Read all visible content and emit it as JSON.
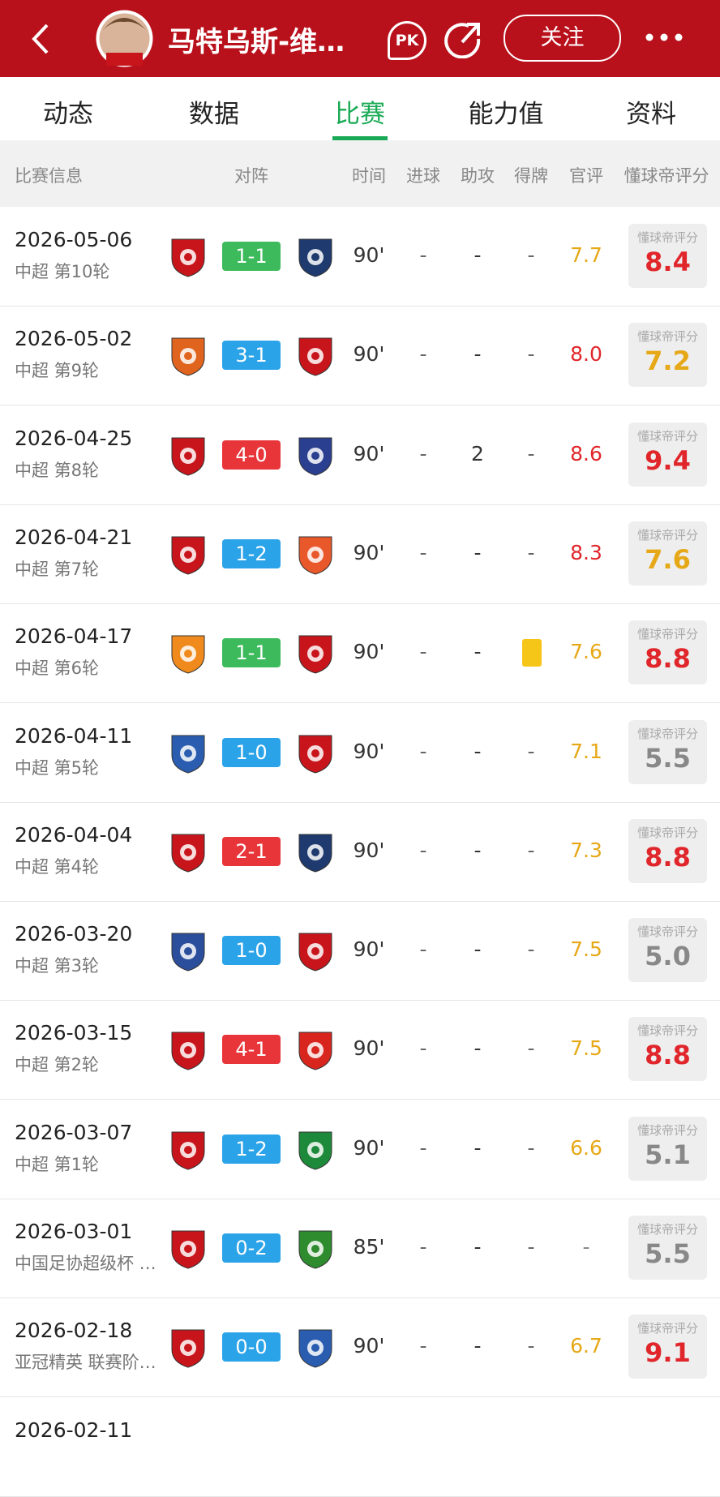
{
  "header": {
    "title": "马特乌斯-维…",
    "pk": "PK",
    "follow": "关注"
  },
  "tabs": {
    "items": [
      "动态",
      "数据",
      "比赛",
      "能力值",
      "资料"
    ],
    "active": 2,
    "active_color": "#1aaa55"
  },
  "table": {
    "columns": [
      "比赛信息",
      "对阵",
      "时间",
      "进球",
      "助攻",
      "得牌",
      "官评",
      "懂球帝评分"
    ],
    "dqd_label": "懂球帝评分",
    "rows": [
      {
        "date": "2026-05-06",
        "comp": "中超 第10轮",
        "score": "1-1",
        "score_color": "#3dbb5c",
        "left_logo": "#c8151b",
        "right_logo": "#1f3a6e",
        "time": "90'",
        "goals": "-",
        "assists": "-",
        "cards": "-",
        "rating": "7.7",
        "rating_color": "#e6a817",
        "dqd": "8.4",
        "dqd_color": "#e0262b"
      },
      {
        "date": "2026-05-02",
        "comp": "中超 第9轮",
        "score": "3-1",
        "score_color": "#2ba3e8",
        "left_logo": "#e0641e",
        "right_logo": "#c8151b",
        "time": "90'",
        "goals": "-",
        "assists": "-",
        "cards": "-",
        "rating": "8.0",
        "rating_color": "#e0262b",
        "dqd": "7.2",
        "dqd_color": "#e6a817"
      },
      {
        "date": "2026-04-25",
        "comp": "中超 第8轮",
        "score": "4-0",
        "score_color": "#e8353a",
        "left_logo": "#c8151b",
        "right_logo": "#2a3f8f",
        "time": "90'",
        "goals": "-",
        "assists": "2",
        "cards": "-",
        "rating": "8.6",
        "rating_color": "#e0262b",
        "dqd": "9.4",
        "dqd_color": "#e0262b"
      },
      {
        "date": "2026-04-21",
        "comp": "中超 第7轮",
        "score": "1-2",
        "score_color": "#2ba3e8",
        "left_logo": "#c8151b",
        "right_logo": "#e8582a",
        "time": "90'",
        "goals": "-",
        "assists": "-",
        "cards": "-",
        "rating": "8.3",
        "rating_color": "#e0262b",
        "dqd": "7.6",
        "dqd_color": "#e6a817"
      },
      {
        "date": "2026-04-17",
        "comp": "中超 第6轮",
        "score": "1-1",
        "score_color": "#3dbb5c",
        "left_logo": "#f08a1c",
        "right_logo": "#c8151b",
        "time": "90'",
        "goals": "-",
        "assists": "-",
        "cards": "yellow",
        "rating": "7.6",
        "rating_color": "#e6a817",
        "dqd": "8.8",
        "dqd_color": "#e0262b"
      },
      {
        "date": "2026-04-11",
        "comp": "中超 第5轮",
        "score": "1-0",
        "score_color": "#2ba3e8",
        "left_logo": "#2a5db0",
        "right_logo": "#c8151b",
        "time": "90'",
        "goals": "-",
        "assists": "-",
        "cards": "-",
        "rating": "7.1",
        "rating_color": "#e6a817",
        "dqd": "5.5",
        "dqd_color": "#888888"
      },
      {
        "date": "2026-04-04",
        "comp": "中超 第4轮",
        "score": "2-1",
        "score_color": "#e8353a",
        "left_logo": "#c8151b",
        "right_logo": "#1f3a6e",
        "time": "90'",
        "goals": "-",
        "assists": "-",
        "cards": "-",
        "rating": "7.3",
        "rating_color": "#e6a817",
        "dqd": "8.8",
        "dqd_color": "#e0262b"
      },
      {
        "date": "2026-03-20",
        "comp": "中超 第3轮",
        "score": "1-0",
        "score_color": "#2ba3e8",
        "left_logo": "#2a4d9c",
        "right_logo": "#c8151b",
        "time": "90'",
        "goals": "-",
        "assists": "-",
        "cards": "-",
        "rating": "7.5",
        "rating_color": "#e6a817",
        "dqd": "5.0",
        "dqd_color": "#888888"
      },
      {
        "date": "2026-03-15",
        "comp": "中超 第2轮",
        "score": "4-1",
        "score_color": "#e8353a",
        "left_logo": "#c8151b",
        "right_logo": "#d8261e",
        "time": "90'",
        "goals": "-",
        "assists": "-",
        "cards": "-",
        "rating": "7.5",
        "rating_color": "#e6a817",
        "dqd": "8.8",
        "dqd_color": "#e0262b"
      },
      {
        "date": "2026-03-07",
        "comp": "中超 第1轮",
        "score": "1-2",
        "score_color": "#2ba3e8",
        "left_logo": "#c8151b",
        "right_logo": "#1c8a3a",
        "time": "90'",
        "goals": "-",
        "assists": "-",
        "cards": "-",
        "rating": "6.6",
        "rating_color": "#e6a817",
        "dqd": "5.1",
        "dqd_color": "#888888"
      },
      {
        "date": "2026-03-01",
        "comp": "中国足协超级杯 …",
        "score": "0-2",
        "score_color": "#2ba3e8",
        "left_logo": "#c8151b",
        "right_logo": "#2e8b2e",
        "time": "85'",
        "goals": "-",
        "assists": "-",
        "cards": "-",
        "rating": "-",
        "rating_color": "#888888",
        "dqd": "5.5",
        "dqd_color": "#888888"
      },
      {
        "date": "2026-02-18",
        "comp": "亚冠精英 联赛阶…",
        "score": "0-0",
        "score_color": "#2ba3e8",
        "left_logo": "#c8151b",
        "right_logo": "#2a5db0",
        "time": "90'",
        "goals": "-",
        "assists": "-",
        "cards": "-",
        "rating": "6.7",
        "rating_color": "#e6a817",
        "dqd": "9.1",
        "dqd_color": "#e0262b"
      },
      {
        "date": "2026-02-11"
      }
    ]
  }
}
